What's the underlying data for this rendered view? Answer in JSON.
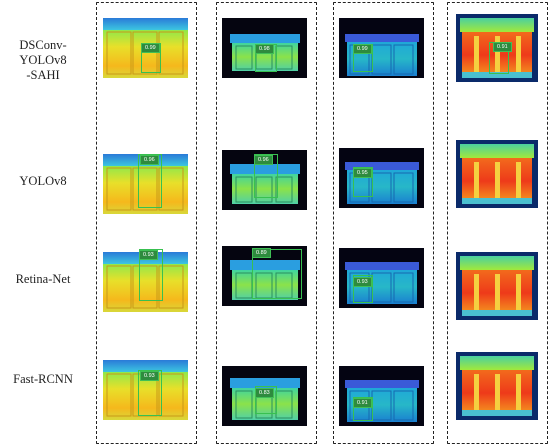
{
  "rows": [
    {
      "label_line1": "DSConv-YOLOv8",
      "label_line2": "-SAHI"
    },
    {
      "label_line1": "YOLOv8",
      "label_line2": ""
    },
    {
      "label_line1": "Retina-Net",
      "label_line2": ""
    },
    {
      "label_line1": "Fast-RCNN",
      "label_line2": ""
    }
  ],
  "scores": [
    [
      "0.99",
      "0.98",
      "0.99",
      "0.91"
    ],
    [
      "0.96",
      "0.96",
      "0.95",
      ""
    ],
    [
      "0.93",
      "0.89",
      "0.93",
      ""
    ],
    [
      "0.93",
      "0.83",
      "0.91",
      ""
    ]
  ],
  "colors": {
    "frame": "#222222",
    "label_box": "#2e8b3e",
    "bbox_stroke": "#38c050"
  }
}
